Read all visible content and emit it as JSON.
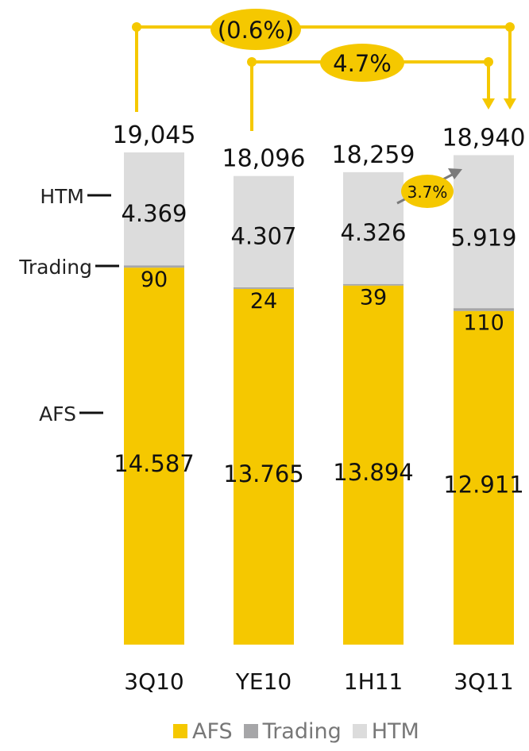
{
  "chart_data": {
    "type": "bar",
    "stacked": true,
    "categories": [
      "3Q10",
      "YE10",
      "1H11",
      "3Q11"
    ],
    "series": [
      {
        "name": "AFS",
        "values": [
          14587,
          13765,
          13894,
          12911
        ],
        "labels": [
          "14.587",
          "13.765",
          "13.894",
          "12.911"
        ],
        "color": "#f5c800"
      },
      {
        "name": "Trading",
        "values": [
          90,
          24,
          39,
          110
        ],
        "labels": [
          "90",
          "24",
          "39",
          "110"
        ],
        "color": "#a6a6a8"
      },
      {
        "name": "HTM",
        "values": [
          4369,
          4307,
          4326,
          5919
        ],
        "labels": [
          "4.369",
          "4.307",
          "4.326",
          "5.919"
        ],
        "color": "#dcdcdc"
      }
    ],
    "totals": [
      "19,045",
      "18,096",
      "18,259",
      "18,940"
    ],
    "side_labels": [
      "HTM",
      "Trading",
      "AFS"
    ],
    "annotations": [
      {
        "text": "(0.6%)",
        "from": "3Q10",
        "to": "3Q11"
      },
      {
        "text": "4.7%",
        "from": "YE10",
        "to": "3Q11"
      },
      {
        "text": "3.7%",
        "from": "1H11",
        "to": "3Q11"
      }
    ],
    "legend_position": "bottom",
    "grid": false
  }
}
